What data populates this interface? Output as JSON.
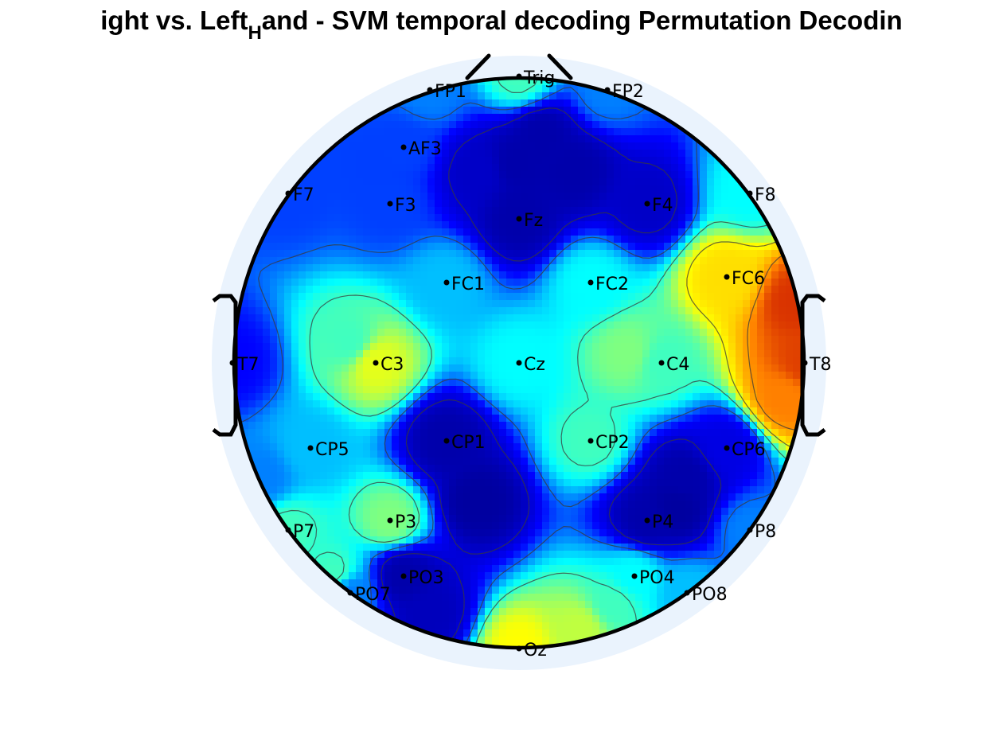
{
  "title": {
    "part1": "ight vs. Left",
    "subscript": "H",
    "part2": "and - SVM temporal decoding Permutation Decodin"
  },
  "colormap": [
    "#00008f",
    "#0000ff",
    "#00ffff",
    "#ffff00",
    "#ff8000",
    "#c00000"
  ],
  "head": {
    "outline_color": "#000000",
    "halo_color": "#eaf3fd"
  },
  "electrodes": [
    {
      "label": "Trig",
      "value": 0.45
    },
    {
      "label": "FP1",
      "value": 0.3
    },
    {
      "label": "FP2",
      "value": 0.3
    },
    {
      "label": "AF3",
      "value": 0.25
    },
    {
      "label": "F7",
      "value": 0.25
    },
    {
      "label": "F3",
      "value": 0.25
    },
    {
      "label": "Fz",
      "value": 0.05
    },
    {
      "label": "F4",
      "value": 0.1
    },
    {
      "label": "F8",
      "value": 0.4
    },
    {
      "label": "FC1",
      "value": 0.35
    },
    {
      "label": "FC2",
      "value": 0.4
    },
    {
      "label": "FC6",
      "value": 0.65
    },
    {
      "label": "T7",
      "value": 0.2
    },
    {
      "label": "C3",
      "value": 0.58
    },
    {
      "label": "Cz",
      "value": 0.4
    },
    {
      "label": "C4",
      "value": 0.45
    },
    {
      "label": "T8",
      "value": 0.9
    },
    {
      "label": "CP5",
      "value": 0.35
    },
    {
      "label": "CP1",
      "value": 0.05
    },
    {
      "label": "CP2",
      "value": 0.45
    },
    {
      "label": "CP6",
      "value": 0.15
    },
    {
      "label": "P7",
      "value": 0.45
    },
    {
      "label": "P3",
      "value": 0.5
    },
    {
      "label": "P4",
      "value": 0.05
    },
    {
      "label": "P8",
      "value": 0.3
    },
    {
      "label": "PO7",
      "value": 0.3
    },
    {
      "label": "PO3",
      "value": 0.05
    },
    {
      "label": "PO4",
      "value": 0.4
    },
    {
      "label": "PO8",
      "value": 0.35
    },
    {
      "label": "Oz",
      "value": 0.6
    }
  ]
}
